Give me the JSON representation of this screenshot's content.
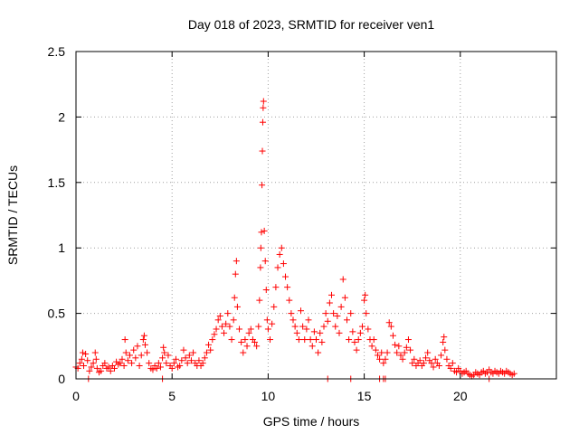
{
  "chart_data": {
    "type": "scatter",
    "title": "Day 018 of 2023, SRMTID for receiver ven1",
    "xlabel": "GPS time / hours",
    "ylabel": "SRMTID / TECUs",
    "xlim": [
      0,
      25
    ],
    "ylim": [
      0,
      2.5
    ],
    "xticks": [
      "0",
      "5",
      "10",
      "15",
      "20"
    ],
    "yticks": [
      "0",
      "0.5",
      "1",
      "1.5",
      "2",
      "2.5"
    ],
    "grid": true,
    "marker": "+",
    "color": "#ff0000",
    "series": [
      {
        "name": "SRMTID",
        "points": [
          [
            0.0,
            0.09
          ],
          [
            0.1,
            0.08
          ],
          [
            0.2,
            0.12
          ],
          [
            0.3,
            0.15
          ],
          [
            0.35,
            0.2
          ],
          [
            0.4,
            0.1
          ],
          [
            0.5,
            0.19
          ],
          [
            0.6,
            0.14
          ],
          [
            0.7,
            0.06
          ],
          [
            0.8,
            0.09
          ],
          [
            0.9,
            0.12
          ],
          [
            1.0,
            0.2
          ],
          [
            1.05,
            0.15
          ],
          [
            1.1,
            0.08
          ],
          [
            1.2,
            0.05
          ],
          [
            1.3,
            0.06
          ],
          [
            1.4,
            0.1
          ],
          [
            1.5,
            0.12
          ],
          [
            1.6,
            0.08
          ],
          [
            1.7,
            0.09
          ],
          [
            1.8,
            0.06
          ],
          [
            1.9,
            0.1
          ],
          [
            2.0,
            0.08
          ],
          [
            2.1,
            0.13
          ],
          [
            2.2,
            0.11
          ],
          [
            2.3,
            0.12
          ],
          [
            2.4,
            0.15
          ],
          [
            2.5,
            0.1
          ],
          [
            2.55,
            0.3
          ],
          [
            2.6,
            0.2
          ],
          [
            2.7,
            0.14
          ],
          [
            2.8,
            0.18
          ],
          [
            2.9,
            0.12
          ],
          [
            3.0,
            0.22
          ],
          [
            3.1,
            0.16
          ],
          [
            3.2,
            0.25
          ],
          [
            3.3,
            0.1
          ],
          [
            3.4,
            0.18
          ],
          [
            3.5,
            0.3
          ],
          [
            3.55,
            0.33
          ],
          [
            3.6,
            0.26
          ],
          [
            3.7,
            0.2
          ],
          [
            3.8,
            0.12
          ],
          [
            3.9,
            0.08
          ],
          [
            4.0,
            0.07
          ],
          [
            4.1,
            0.1
          ],
          [
            4.2,
            0.08
          ],
          [
            4.3,
            0.12
          ],
          [
            4.4,
            0.09
          ],
          [
            4.5,
            0.16
          ],
          [
            4.55,
            0.24
          ],
          [
            4.6,
            0.2
          ],
          [
            4.7,
            0.12
          ],
          [
            4.8,
            0.18
          ],
          [
            4.9,
            0.1
          ],
          [
            5.0,
            0.08
          ],
          [
            5.1,
            0.12
          ],
          [
            5.2,
            0.15
          ],
          [
            5.3,
            0.09
          ],
          [
            5.4,
            0.1
          ],
          [
            5.5,
            0.14
          ],
          [
            5.6,
            0.22
          ],
          [
            5.7,
            0.16
          ],
          [
            5.8,
            0.12
          ],
          [
            5.9,
            0.18
          ],
          [
            6.0,
            0.14
          ],
          [
            6.1,
            0.2
          ],
          [
            6.2,
            0.12
          ],
          [
            6.3,
            0.1
          ],
          [
            6.4,
            0.14
          ],
          [
            6.5,
            0.1
          ],
          [
            6.6,
            0.12
          ],
          [
            6.7,
            0.16
          ],
          [
            6.8,
            0.2
          ],
          [
            6.9,
            0.26
          ],
          [
            7.0,
            0.22
          ],
          [
            7.1,
            0.3
          ],
          [
            7.2,
            0.34
          ],
          [
            7.3,
            0.38
          ],
          [
            7.4,
            0.45
          ],
          [
            7.5,
            0.48
          ],
          [
            7.6,
            0.4
          ],
          [
            7.7,
            0.35
          ],
          [
            7.8,
            0.42
          ],
          [
            7.9,
            0.5
          ],
          [
            8.0,
            0.4
          ],
          [
            8.1,
            0.3
          ],
          [
            8.2,
            0.45
          ],
          [
            8.25,
            0.62
          ],
          [
            8.3,
            0.8
          ],
          [
            8.35,
            0.9
          ],
          [
            8.4,
            0.55
          ],
          [
            8.5,
            0.38
          ],
          [
            8.6,
            0.28
          ],
          [
            8.7,
            0.2
          ],
          [
            8.8,
            0.3
          ],
          [
            8.9,
            0.25
          ],
          [
            9.0,
            0.35
          ],
          [
            9.1,
            0.38
          ],
          [
            9.2,
            0.3
          ],
          [
            9.3,
            0.28
          ],
          [
            9.4,
            0.25
          ],
          [
            9.5,
            0.4
          ],
          [
            9.55,
            0.6
          ],
          [
            9.6,
            0.85
          ],
          [
            9.62,
            1.0
          ],
          [
            9.65,
            1.12
          ],
          [
            9.68,
            1.48
          ],
          [
            9.7,
            1.74
          ],
          [
            9.72,
            1.96
          ],
          [
            9.74,
            2.07
          ],
          [
            9.76,
            2.12
          ],
          [
            9.8,
            1.13
          ],
          [
            9.85,
            0.9
          ],
          [
            9.9,
            0.68
          ],
          [
            9.95,
            0.45
          ],
          [
            10.0,
            0.38
          ],
          [
            10.1,
            0.3
          ],
          [
            10.2,
            0.42
          ],
          [
            10.3,
            0.55
          ],
          [
            10.4,
            0.7
          ],
          [
            10.5,
            0.85
          ],
          [
            10.6,
            0.95
          ],
          [
            10.7,
            1.0
          ],
          [
            10.8,
            0.88
          ],
          [
            10.9,
            0.78
          ],
          [
            11.0,
            0.7
          ],
          [
            11.1,
            0.6
          ],
          [
            11.2,
            0.5
          ],
          [
            11.3,
            0.45
          ],
          [
            11.4,
            0.4
          ],
          [
            11.5,
            0.35
          ],
          [
            11.6,
            0.3
          ],
          [
            11.7,
            0.52
          ],
          [
            11.8,
            0.4
          ],
          [
            11.9,
            0.3
          ],
          [
            12.0,
            0.38
          ],
          [
            12.1,
            0.45
          ],
          [
            12.2,
            0.3
          ],
          [
            12.3,
            0.25
          ],
          [
            12.4,
            0.36
          ],
          [
            12.5,
            0.3
          ],
          [
            12.6,
            0.2
          ],
          [
            12.7,
            0.35
          ],
          [
            12.8,
            0.28
          ],
          [
            12.9,
            0.4
          ],
          [
            13.0,
            0.5
          ],
          [
            13.1,
            0.44
          ],
          [
            13.2,
            0.58
          ],
          [
            13.3,
            0.64
          ],
          [
            13.4,
            0.5
          ],
          [
            13.5,
            0.4
          ],
          [
            13.6,
            0.48
          ],
          [
            13.7,
            0.35
          ],
          [
            13.8,
            0.55
          ],
          [
            13.9,
            0.76
          ],
          [
            14.0,
            0.62
          ],
          [
            14.1,
            0.45
          ],
          [
            14.2,
            0.3
          ],
          [
            14.3,
            0.5
          ],
          [
            14.4,
            0.36
          ],
          [
            14.5,
            0.28
          ],
          [
            14.6,
            0.22
          ],
          [
            14.7,
            0.3
          ],
          [
            14.8,
            0.35
          ],
          [
            14.9,
            0.4
          ],
          [
            15.0,
            0.6
          ],
          [
            15.05,
            0.64
          ],
          [
            15.1,
            0.5
          ],
          [
            15.2,
            0.38
          ],
          [
            15.3,
            0.3
          ],
          [
            15.4,
            0.25
          ],
          [
            15.5,
            0.3
          ],
          [
            15.6,
            0.22
          ],
          [
            15.7,
            0.18
          ],
          [
            15.8,
            0.15
          ],
          [
            15.9,
            0.2
          ],
          [
            16.0,
            0.12
          ],
          [
            16.1,
            0.15
          ],
          [
            16.2,
            0.2
          ],
          [
            16.3,
            0.43
          ],
          [
            16.4,
            0.4
          ],
          [
            16.5,
            0.33
          ],
          [
            16.6,
            0.26
          ],
          [
            16.7,
            0.2
          ],
          [
            16.8,
            0.25
          ],
          [
            16.9,
            0.18
          ],
          [
            17.0,
            0.15
          ],
          [
            17.1,
            0.2
          ],
          [
            17.2,
            0.24
          ],
          [
            17.3,
            0.3
          ],
          [
            17.4,
            0.22
          ],
          [
            17.5,
            0.12
          ],
          [
            17.6,
            0.15
          ],
          [
            17.7,
            0.1
          ],
          [
            17.8,
            0.12
          ],
          [
            17.9,
            0.14
          ],
          [
            18.0,
            0.1
          ],
          [
            18.1,
            0.12
          ],
          [
            18.2,
            0.16
          ],
          [
            18.3,
            0.2
          ],
          [
            18.4,
            0.14
          ],
          [
            18.5,
            0.12
          ],
          [
            18.6,
            0.09
          ],
          [
            18.7,
            0.15
          ],
          [
            18.8,
            0.12
          ],
          [
            18.9,
            0.1
          ],
          [
            19.0,
            0.18
          ],
          [
            19.1,
            0.28
          ],
          [
            19.15,
            0.32
          ],
          [
            19.2,
            0.22
          ],
          [
            19.3,
            0.15
          ],
          [
            19.4,
            0.1
          ],
          [
            19.5,
            0.08
          ],
          [
            19.6,
            0.12
          ],
          [
            19.7,
            0.06
          ],
          [
            19.8,
            0.05
          ],
          [
            19.9,
            0.08
          ],
          [
            20.0,
            0.06
          ],
          [
            20.1,
            0.04
          ],
          [
            20.2,
            0.05
          ],
          [
            20.3,
            0.06
          ],
          [
            20.4,
            0.04
          ],
          [
            20.5,
            0.03
          ],
          [
            20.6,
            0.02
          ],
          [
            20.7,
            0.03
          ],
          [
            20.8,
            0.05
          ],
          [
            20.9,
            0.04
          ],
          [
            21.0,
            0.03
          ],
          [
            21.1,
            0.05
          ],
          [
            21.2,
            0.06
          ],
          [
            21.3,
            0.04
          ],
          [
            21.4,
            0.05
          ],
          [
            21.5,
            0.07
          ],
          [
            21.6,
            0.05
          ],
          [
            21.7,
            0.04
          ],
          [
            21.8,
            0.06
          ],
          [
            21.9,
            0.05
          ],
          [
            22.0,
            0.04
          ],
          [
            22.1,
            0.06
          ],
          [
            22.2,
            0.05
          ],
          [
            22.3,
            0.04
          ],
          [
            22.4,
            0.06
          ],
          [
            22.5,
            0.05
          ],
          [
            22.6,
            0.04
          ],
          [
            22.7,
            0.03
          ],
          [
            22.8,
            0.04
          ],
          [
            0.65,
            0.0
          ],
          [
            4.5,
            0.0
          ],
          [
            13.1,
            0.0
          ],
          [
            14.3,
            0.0
          ],
          [
            15.8,
            0.0
          ],
          [
            16.0,
            0.0
          ],
          [
            16.1,
            0.0
          ],
          [
            21.5,
            0.0
          ]
        ]
      }
    ]
  }
}
